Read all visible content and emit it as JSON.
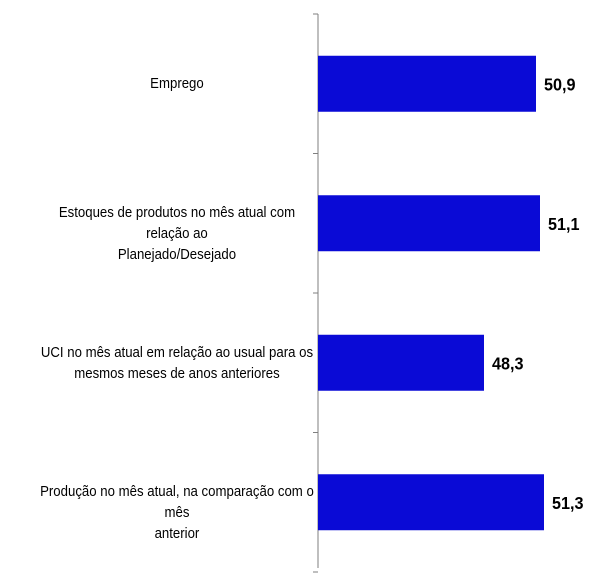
{
  "chart_data": {
    "type": "bar",
    "orientation": "horizontal",
    "categories": [
      "Emprego",
      "Estoques de produtos no mês atual com relação ao Planejado/Desejado",
      "UCI no mês atual em relação ao usual para os mesmos meses de anos anteriores",
      "Produção no mês atual, na comparação com o mês anterior"
    ],
    "values": [
      50.9,
      51.1,
      48.3,
      51.3
    ],
    "value_labels": [
      "50,9",
      "51,1",
      "48,3",
      "51,3"
    ],
    "xlim": [
      40,
      52
    ],
    "bar_color": "#0a0ad6",
    "grid": false,
    "legend": "none"
  }
}
